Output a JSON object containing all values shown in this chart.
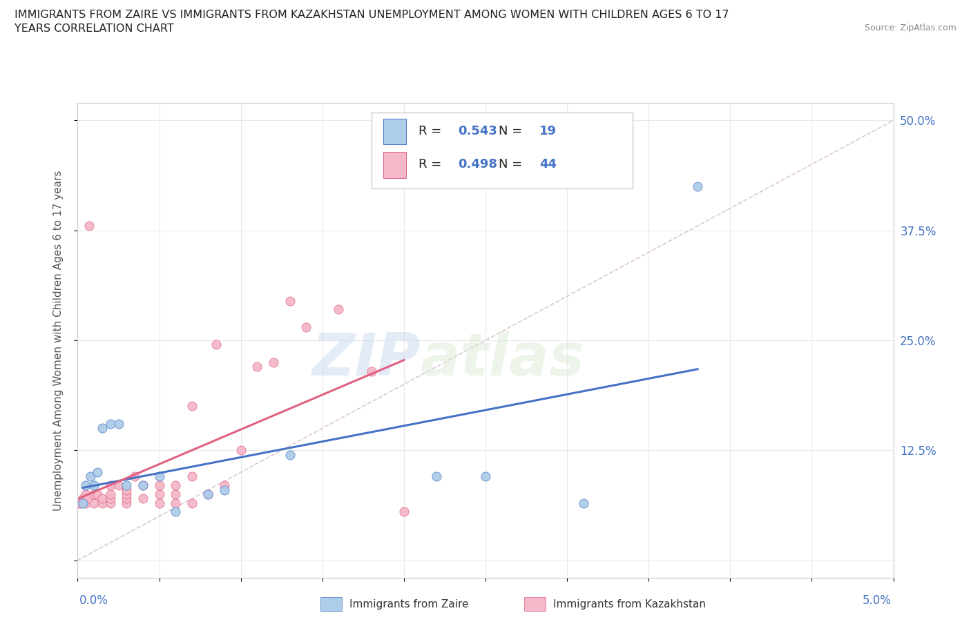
{
  "title_line1": "IMMIGRANTS FROM ZAIRE VS IMMIGRANTS FROM KAZAKHSTAN UNEMPLOYMENT AMONG WOMEN WITH CHILDREN AGES 6 TO 17",
  "title_line2": "YEARS CORRELATION CHART",
  "source": "Source: ZipAtlas.com",
  "ylabel": "Unemployment Among Women with Children Ages 6 to 17 years",
  "xlim": [
    0.0,
    0.05
  ],
  "ylim": [
    -0.02,
    0.52
  ],
  "xticks": [
    0.0,
    0.005,
    0.01,
    0.015,
    0.02,
    0.025,
    0.03,
    0.035,
    0.04,
    0.045,
    0.05
  ],
  "yticks": [
    0.0,
    0.125,
    0.25,
    0.375,
    0.5
  ],
  "ytick_labels": [
    "",
    "12.5%",
    "25.0%",
    "37.5%",
    "50.0%"
  ],
  "zaire_color": "#aecde8",
  "kazakhstan_color": "#f4b8c8",
  "zaire_edge_color": "#4472c4",
  "kazakhstan_edge_color": "#e06080",
  "zaire_line_color": "#4472c4",
  "kazakhstan_line_color": "#e06080",
  "diagonal_color": "#d8c0d0",
  "R_zaire": 0.543,
  "N_zaire": 19,
  "R_kazakhstan": 0.498,
  "N_kazakhstan": 44,
  "zaire_x": [
    0.0003,
    0.0005,
    0.0008,
    0.001,
    0.0012,
    0.0015,
    0.002,
    0.0025,
    0.003,
    0.004,
    0.005,
    0.006,
    0.008,
    0.009,
    0.013,
    0.022,
    0.025,
    0.031,
    0.038
  ],
  "zaire_y": [
    0.065,
    0.085,
    0.095,
    0.085,
    0.1,
    0.15,
    0.155,
    0.155,
    0.085,
    0.085,
    0.095,
    0.055,
    0.075,
    0.08,
    0.12,
    0.095,
    0.095,
    0.065,
    0.425
  ],
  "kazakhstan_x": [
    0.0001,
    0.0002,
    0.0003,
    0.0005,
    0.0005,
    0.0006,
    0.0007,
    0.001,
    0.001,
    0.0012,
    0.0015,
    0.0015,
    0.002,
    0.002,
    0.002,
    0.002,
    0.0025,
    0.003,
    0.003,
    0.003,
    0.003,
    0.0035,
    0.004,
    0.004,
    0.005,
    0.005,
    0.005,
    0.006,
    0.006,
    0.006,
    0.007,
    0.007,
    0.007,
    0.008,
    0.0085,
    0.009,
    0.01,
    0.011,
    0.012,
    0.013,
    0.014,
    0.016,
    0.018,
    0.02
  ],
  "kazakhstan_y": [
    0.065,
    0.065,
    0.07,
    0.065,
    0.075,
    0.07,
    0.38,
    0.065,
    0.075,
    0.075,
    0.065,
    0.07,
    0.065,
    0.07,
    0.075,
    0.085,
    0.085,
    0.065,
    0.07,
    0.075,
    0.08,
    0.095,
    0.07,
    0.085,
    0.065,
    0.075,
    0.085,
    0.065,
    0.075,
    0.085,
    0.065,
    0.095,
    0.175,
    0.075,
    0.245,
    0.085,
    0.125,
    0.22,
    0.225,
    0.295,
    0.265,
    0.285,
    0.215,
    0.055
  ],
  "watermark_zip": "ZIP",
  "watermark_atlas": "atlas",
  "background_color": "#ffffff",
  "grid_color": "#e8e8e8",
  "spine_color": "#cccccc",
  "tick_label_color": "#4472c4",
  "title_color": "#222222",
  "source_color": "#888888",
  "legend_label_color": "#222222"
}
